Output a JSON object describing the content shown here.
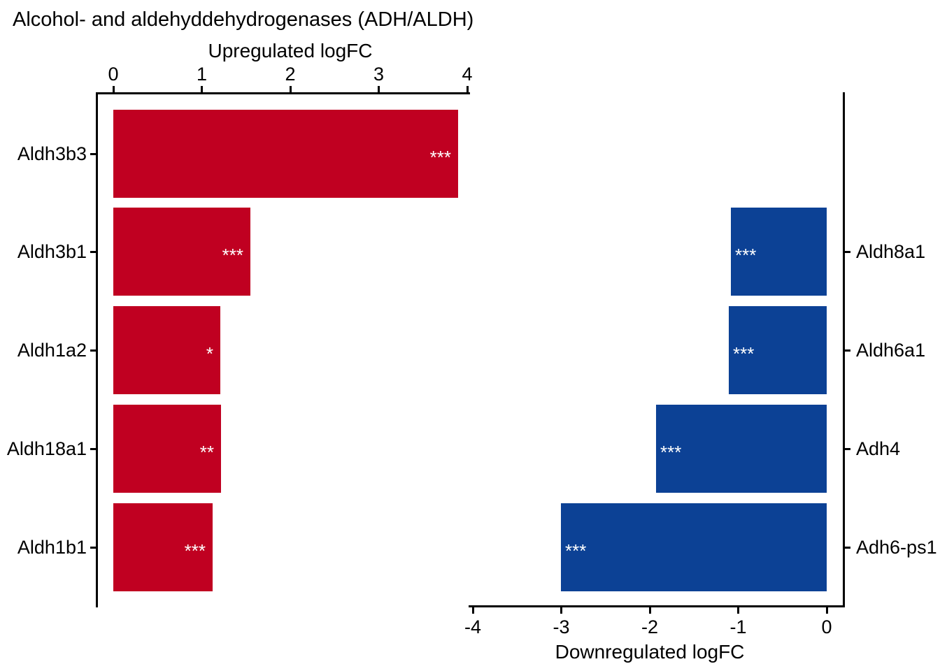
{
  "title": "Alcohol- and aldehyddehydrogenases (ADH/ALDH)",
  "chart_data": {
    "type": "bar",
    "orientation": "horizontal",
    "grid": false,
    "legend": false,
    "background": "#FFFFFF",
    "axis_color": "#000000",
    "significance_color": "#FFFFFF",
    "rows": 5,
    "panels": [
      {
        "id": "upregulated",
        "axis_label": "Upregulated logFC",
        "axis_position": "top",
        "side": "left",
        "xlim": [
          0,
          4
        ],
        "tick_values": [
          0,
          1,
          2,
          3,
          4
        ],
        "tick_labels": [
          "0",
          "1",
          "2",
          "3",
          "4"
        ],
        "bar_color": "#C00021",
        "bars": [
          {
            "gene": "Aldh3b3",
            "logFC": 3.9,
            "significance": "***",
            "row": 0
          },
          {
            "gene": "Aldh3b1",
            "logFC": 1.55,
            "significance": "***",
            "row": 1
          },
          {
            "gene": "Aldh1a2",
            "logFC": 1.21,
            "significance": "*",
            "row": 2
          },
          {
            "gene": "Aldh18a1",
            "logFC": 1.22,
            "significance": "**",
            "row": 3
          },
          {
            "gene": "Aldh1b1",
            "logFC": 1.12,
            "significance": "***",
            "row": 4
          }
        ]
      },
      {
        "id": "downregulated",
        "axis_label": "Downregulated logFC",
        "axis_position": "bottom",
        "side": "right",
        "xlim": [
          -4,
          0
        ],
        "tick_values": [
          -4,
          -3,
          -2,
          -1,
          0
        ],
        "tick_labels": [
          "-4",
          "-3",
          "-2",
          "-1",
          "0"
        ],
        "bar_color": "#0C4195",
        "bars": [
          {
            "gene": "Aldh8a1",
            "logFC": -1.08,
            "significance": "***",
            "row": 1
          },
          {
            "gene": "Aldh6a1",
            "logFC": -1.11,
            "significance": "***",
            "row": 2
          },
          {
            "gene": "Adh4",
            "logFC": -1.93,
            "significance": "***",
            "row": 3
          },
          {
            "gene": "Adh6-ps1",
            "logFC": -3.0,
            "significance": "***",
            "row": 4
          }
        ]
      }
    ]
  }
}
